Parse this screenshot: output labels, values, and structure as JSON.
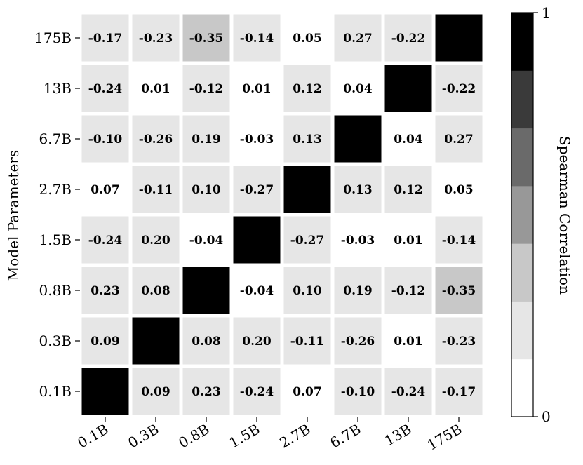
{
  "chart_data": {
    "type": "heatmap",
    "title": "",
    "xlabel": "",
    "ylabel": "Model Parameters",
    "x_categories": [
      "0.1B",
      "0.3B",
      "0.8B",
      "1.5B",
      "2.7B",
      "6.7B",
      "13B",
      "175B"
    ],
    "y_categories": [
      "175B",
      "13B",
      "6.7B",
      "2.7B",
      "1.5B",
      "0.8B",
      "0.3B",
      "0.1B"
    ],
    "values": [
      [
        -0.17,
        -0.23,
        -0.35,
        -0.14,
        0.05,
        0.27,
        -0.22,
        1
      ],
      [
        -0.24,
        0.01,
        -0.12,
        0.01,
        0.12,
        0.04,
        1,
        -0.22
      ],
      [
        -0.1,
        -0.26,
        0.19,
        -0.03,
        0.13,
        1,
        0.04,
        0.27
      ],
      [
        0.07,
        -0.11,
        0.1,
        -0.27,
        1,
        0.13,
        0.12,
        0.05
      ],
      [
        -0.24,
        0.2,
        -0.04,
        1,
        -0.27,
        -0.03,
        0.01,
        -0.14
      ],
      [
        0.23,
        0.08,
        1,
        -0.04,
        0.1,
        0.19,
        -0.12,
        -0.35
      ],
      [
        0.09,
        1,
        0.08,
        0.2,
        -0.11,
        -0.26,
        0.01,
        -0.23
      ],
      [
        1,
        0.09,
        0.23,
        -0.24,
        0.07,
        -0.1,
        -0.24,
        -0.17
      ]
    ],
    "annotations": [
      [
        "-0.17",
        "-0.23",
        "-0.35",
        "-0.14",
        "0.05",
        "0.27",
        "-0.22",
        ""
      ],
      [
        "-0.24",
        "0.01",
        "-0.12",
        "0.01",
        "0.12",
        "0.04",
        "",
        "-0.22"
      ],
      [
        "-0.10",
        "-0.26",
        "0.19",
        "-0.03",
        "0.13",
        "",
        "0.04",
        "0.27"
      ],
      [
        "0.07",
        "-0.11",
        "0.10",
        "-0.27",
        "",
        "0.13",
        "0.12",
        "0.05"
      ],
      [
        "-0.24",
        "0.20",
        "-0.04",
        "",
        "-0.27",
        "-0.03",
        "0.01",
        "-0.14"
      ],
      [
        "0.23",
        "0.08",
        "",
        "-0.04",
        "0.10",
        "0.19",
        "-0.12",
        "-0.35"
      ],
      [
        "0.09",
        "",
        "0.08",
        "0.20",
        "-0.11",
        "-0.26",
        "0.01",
        "-0.23"
      ],
      [
        "",
        "0.09",
        "0.23",
        "-0.24",
        "0.07",
        "-0.10",
        "-0.24",
        "-0.17"
      ]
    ],
    "colorbar": {
      "label": "Spearman Correlation",
      "min": 0,
      "max": 1,
      "tick_labels": [
        "0",
        "1"
      ],
      "band_colors": [
        "#ffffff",
        "#e6e6e6",
        "#c8c8c8",
        "#989898",
        "#6a6a6a",
        "#3a3a3a",
        "#000000"
      ]
    },
    "grid": false,
    "legend": "colorbar-right"
  }
}
